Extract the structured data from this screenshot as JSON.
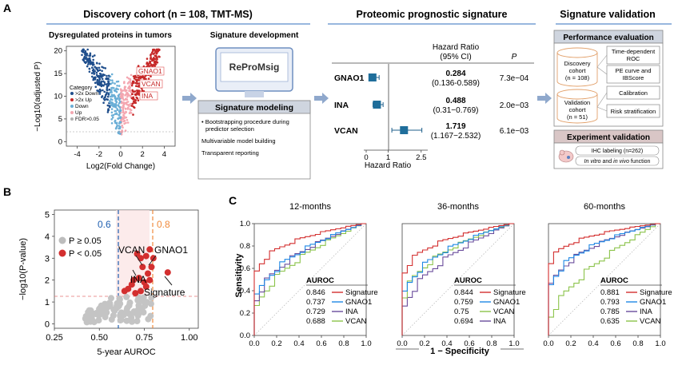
{
  "panel_a": {
    "label": "A",
    "discovery": {
      "title": "Discovery cohort (n = 108, TMT-MS)",
      "volcano_title": "Dysregulated proteins in tumors",
      "dev_title": "Signature development",
      "ylabel": "−Log10(adjusted P)",
      "xlabel": "Log2(Fold  Change)",
      "yticks": [
        "0",
        "5",
        "10",
        "15",
        "20"
      ],
      "xticks": [
        "-4",
        "-2",
        "0",
        "2",
        "4"
      ],
      "legend_title": "Category",
      "legend": [
        {
          "label": ">2x Down",
          "color": "#1f4e8c"
        },
        {
          "label": ">2x Up",
          "color": "#c62828"
        },
        {
          "label": "Down",
          "color": "#6aaed6"
        },
        {
          "label": "Up",
          "color": "#f4a6b0"
        },
        {
          "label": "FDR>0.05",
          "color": "#b0b0b0"
        }
      ],
      "gene_labels": [
        "GNAO1",
        "VCAN",
        "INA"
      ],
      "repromsig": "ReProMsig",
      "modeling_title": "Signature modeling",
      "modeling_items": [
        "Bootstrapping procedure during predictor selection",
        "Multivariable model building",
        "Transparent reporting"
      ]
    },
    "prognostic": {
      "title": "Proteomic prognostic signature",
      "hr_header": "Hazard Ratio",
      "ci_header": "(95% CI)",
      "p_header": "P",
      "xlabel": "Hazard Ratio",
      "xticks": [
        "0",
        "1",
        "2.5"
      ],
      "rows": [
        {
          "gene": "GNAO1",
          "hr": "0.284",
          "ci": "(0.136-0.589)",
          "p": "7.3e−04"
        },
        {
          "gene": "INA",
          "hr": "0.488",
          "ci": "(0.31−0.769)",
          "p": "2.0e−03"
        },
        {
          "gene": "VCAN",
          "hr": "1.719",
          "ci": "(1.167−2.532)",
          "p": "6.1e−03"
        }
      ],
      "forest": [
        {
          "hr": 0.284,
          "lo": 0.136,
          "hi": 0.589
        },
        {
          "hr": 0.488,
          "lo": 0.31,
          "hi": 0.769
        },
        {
          "hr": 1.719,
          "lo": 1.167,
          "hi": 2.532
        }
      ]
    },
    "validation": {
      "title": "Signature validation",
      "perf_title": "Performance evaluation",
      "discovery_cohort": "Discovery cohort (n = 108)",
      "validation_cohort": "Validation cohort (n = 51)",
      "methods": [
        "Time-dependent ROC",
        "PE curve and IBScore",
        "Calibration",
        "Risk stratification"
      ],
      "exp_title": "Experiment validation",
      "exp_items": [
        "IHC labeling (n=262)",
        "In vitro and in vivo function"
      ]
    }
  },
  "panel_b": {
    "label": "B",
    "xlabel": "5-year AUROC",
    "ylabel": "−log10(P-value)",
    "xticks": [
      "0.25",
      "0.50",
      "0.75",
      "1.00"
    ],
    "yticks": [
      "0",
      "1",
      "2",
      "3",
      "4",
      "5"
    ],
    "vline1": "0.6",
    "vline2": "0.8",
    "legend": [
      "P ≥ 0.05",
      "P < 0.05"
    ],
    "labels": [
      "VCAN",
      "GNAO1",
      "INA",
      "Signature"
    ]
  },
  "panel_c": {
    "label": "C",
    "xlabel": "1 − Specificity",
    "ylabel": "Sensitivity",
    "ticks": [
      "0.0",
      "0.2",
      "0.4",
      "0.6",
      "0.8",
      "1.0"
    ],
    "auroc_header": "AUROC",
    "colors": {
      "Signature": "#d32f2f",
      "GNAO1": "#1e88e5",
      "INA": "#6a4c9c",
      "VCAN": "#8bc34a"
    },
    "plots": [
      {
        "title": "12-months",
        "rows": [
          [
            "0.846",
            "Signature"
          ],
          [
            "0.737",
            "GNAO1"
          ],
          [
            "0.729",
            "INA"
          ],
          [
            "0.688",
            "VCAN"
          ]
        ]
      },
      {
        "title": "36-months",
        "rows": [
          [
            "0.844",
            "Signature"
          ],
          [
            "0.759",
            "GNAO1"
          ],
          [
            "0.75",
            "VCAN"
          ],
          [
            "0.694",
            "INA"
          ]
        ]
      },
      {
        "title": "60-months",
        "rows": [
          [
            "0.881",
            "Signature"
          ],
          [
            "0.793",
            "GNAO1"
          ],
          [
            "0.785",
            "INA"
          ],
          [
            "0.635",
            "VCAN"
          ]
        ]
      }
    ]
  }
}
